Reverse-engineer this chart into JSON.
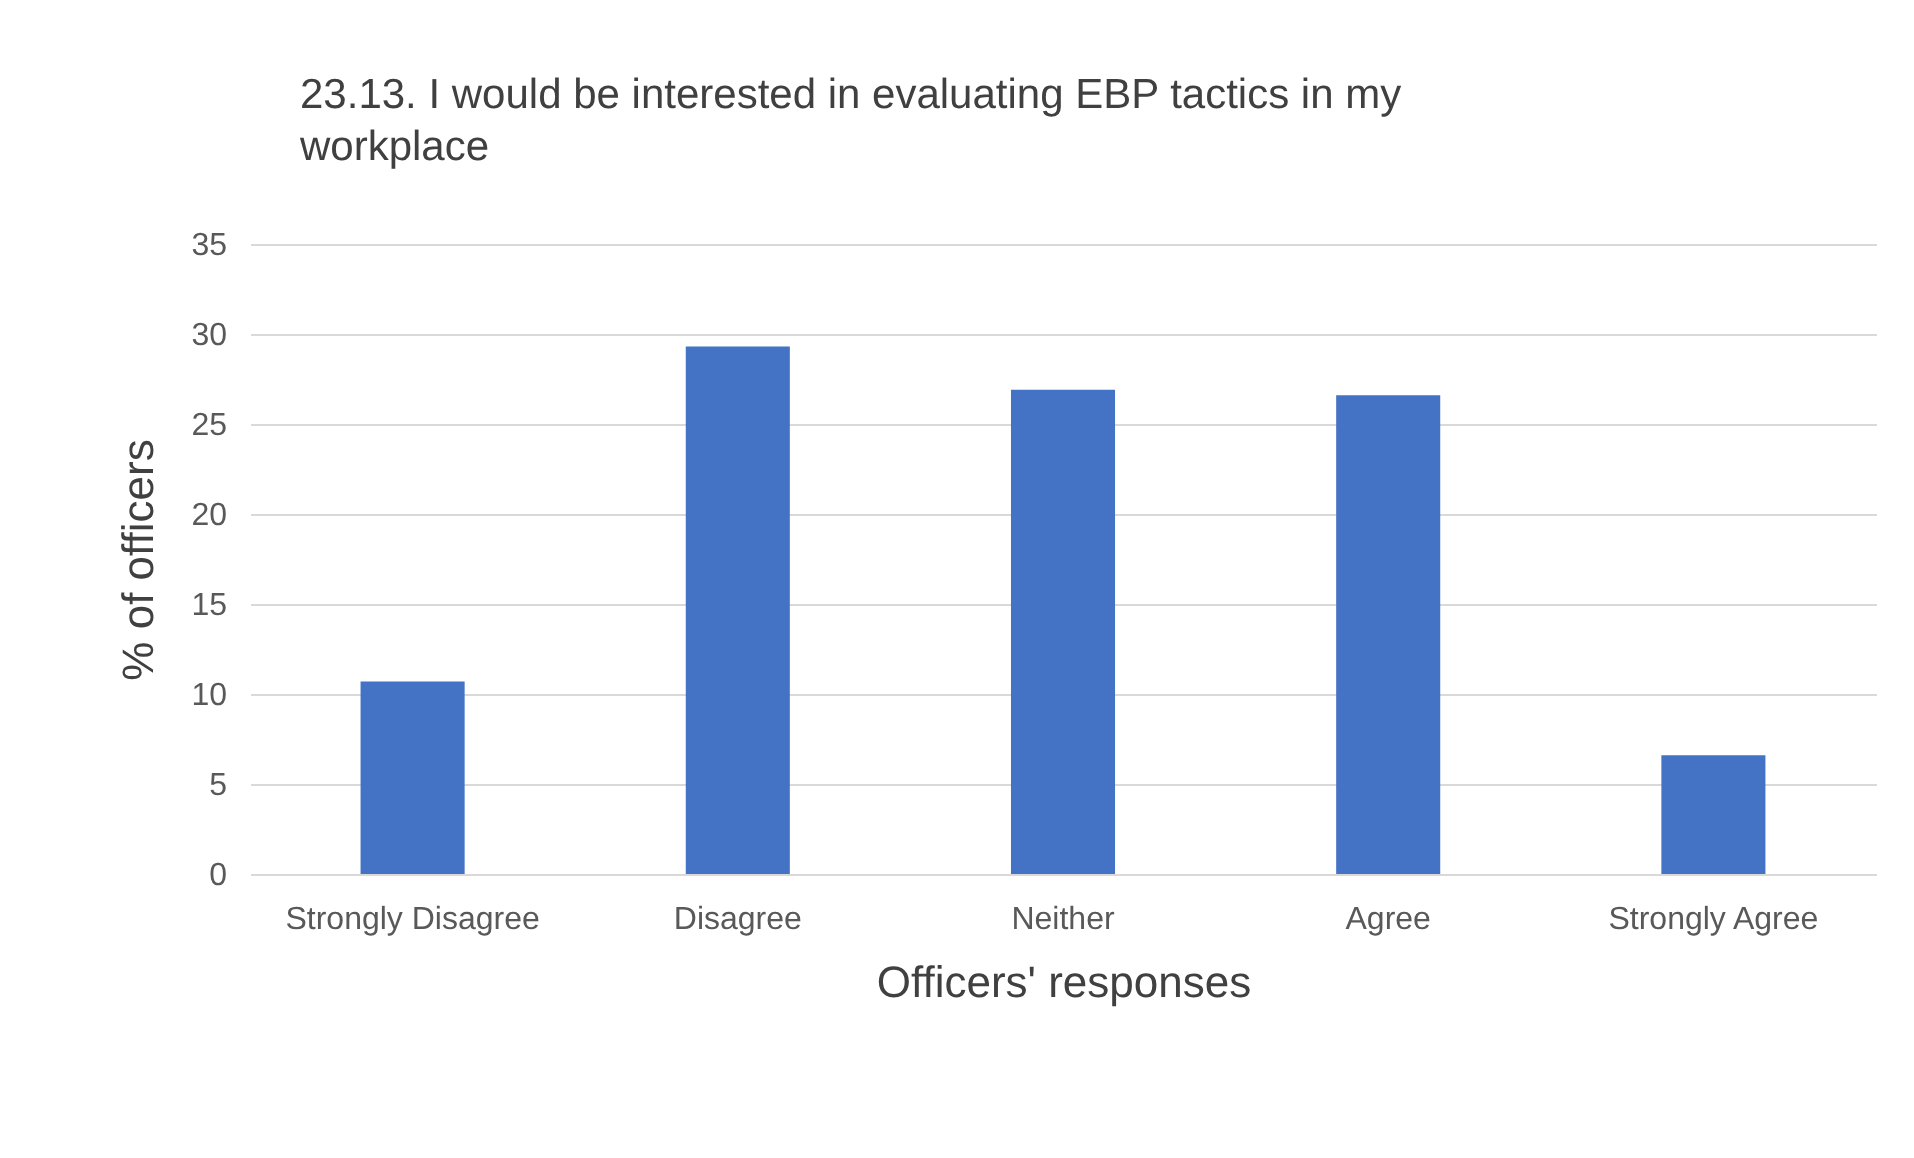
{
  "chart_data": {
    "type": "bar",
    "title": "23.13. I would be interested in evaluating EBP tactics in my workplace",
    "xlabel": "Officers' responses",
    "ylabel": "% of officers",
    "categories": [
      "Strongly Disagree",
      "Disagree",
      "Neither",
      "Agree",
      "Strongly Agree"
    ],
    "values": [
      10.7,
      29.3,
      26.9,
      26.6,
      6.6
    ],
    "color": "#4472c4",
    "ylim": [
      0,
      35
    ],
    "yticks": [
      0,
      5,
      10,
      15,
      20,
      25,
      30,
      35
    ],
    "grid": "y"
  }
}
